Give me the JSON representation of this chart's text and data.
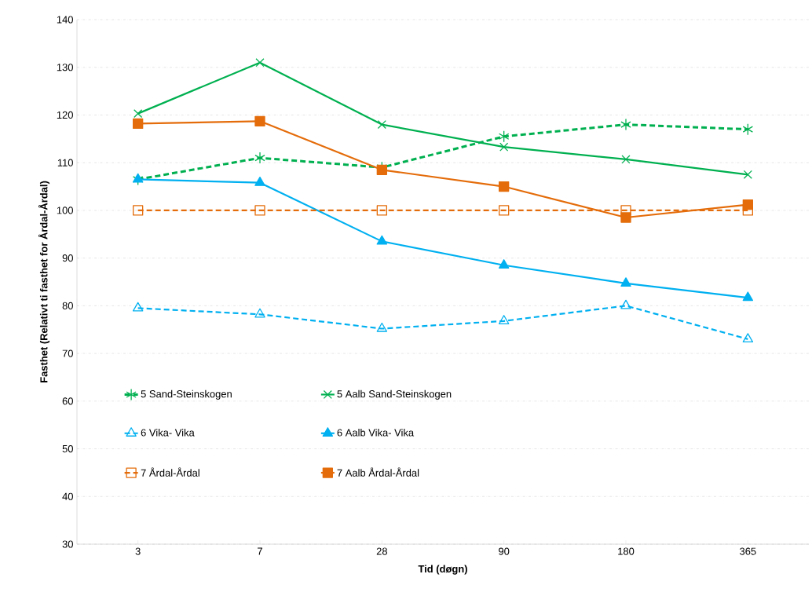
{
  "chart_data": {
    "type": "line",
    "xlabel": "Tid (døgn)",
    "ylabel": "Fasthet (Relativt ti fasthet for Årdal-Årdal)",
    "categories": [
      "3",
      "7",
      "28",
      "90",
      "180",
      "365"
    ],
    "ylim": [
      30,
      140
    ],
    "yticks": [
      30,
      40,
      50,
      60,
      70,
      80,
      90,
      100,
      110,
      120,
      130,
      140
    ],
    "grid": "y",
    "legend": "bottom",
    "series": [
      {
        "name": "5 Sand-Steinskogen",
        "color": "#00b050",
        "marker": "cross",
        "line_style": "dashed",
        "values": [
          106.5,
          111,
          109,
          115.5,
          118,
          117
        ]
      },
      {
        "name": "5 Aalb Sand-Steinskogen",
        "color": "#00b050",
        "marker": "cross",
        "line_style": "solid",
        "values": [
          120.3,
          131,
          118,
          113.3,
          110.7,
          107.5
        ]
      },
      {
        "name": "6 Vika- Vika",
        "color": "#00b0f0",
        "marker": "triangle",
        "line_style": "dashed",
        "values": [
          79.5,
          78.2,
          75.2,
          76.8,
          80,
          73
        ]
      },
      {
        "name": "6 Aalb Vika- Vika",
        "color": "#00b0f0",
        "marker": "triangle",
        "line_style": "solid",
        "values": [
          106.5,
          105.8,
          93.5,
          88.5,
          84.7,
          81.7
        ]
      },
      {
        "name": "7 Årdal-Årdal",
        "color": "#e46c0a",
        "marker": "square",
        "line_style": "dashed",
        "values": [
          100,
          100,
          100,
          100,
          100,
          100
        ]
      },
      {
        "name": "7 Aalb Årdal-Årdal",
        "color": "#e46c0a",
        "marker": "square",
        "line_style": "solid",
        "values": [
          118.2,
          118.7,
          108.5,
          105,
          98.5,
          101.2
        ]
      }
    ]
  }
}
